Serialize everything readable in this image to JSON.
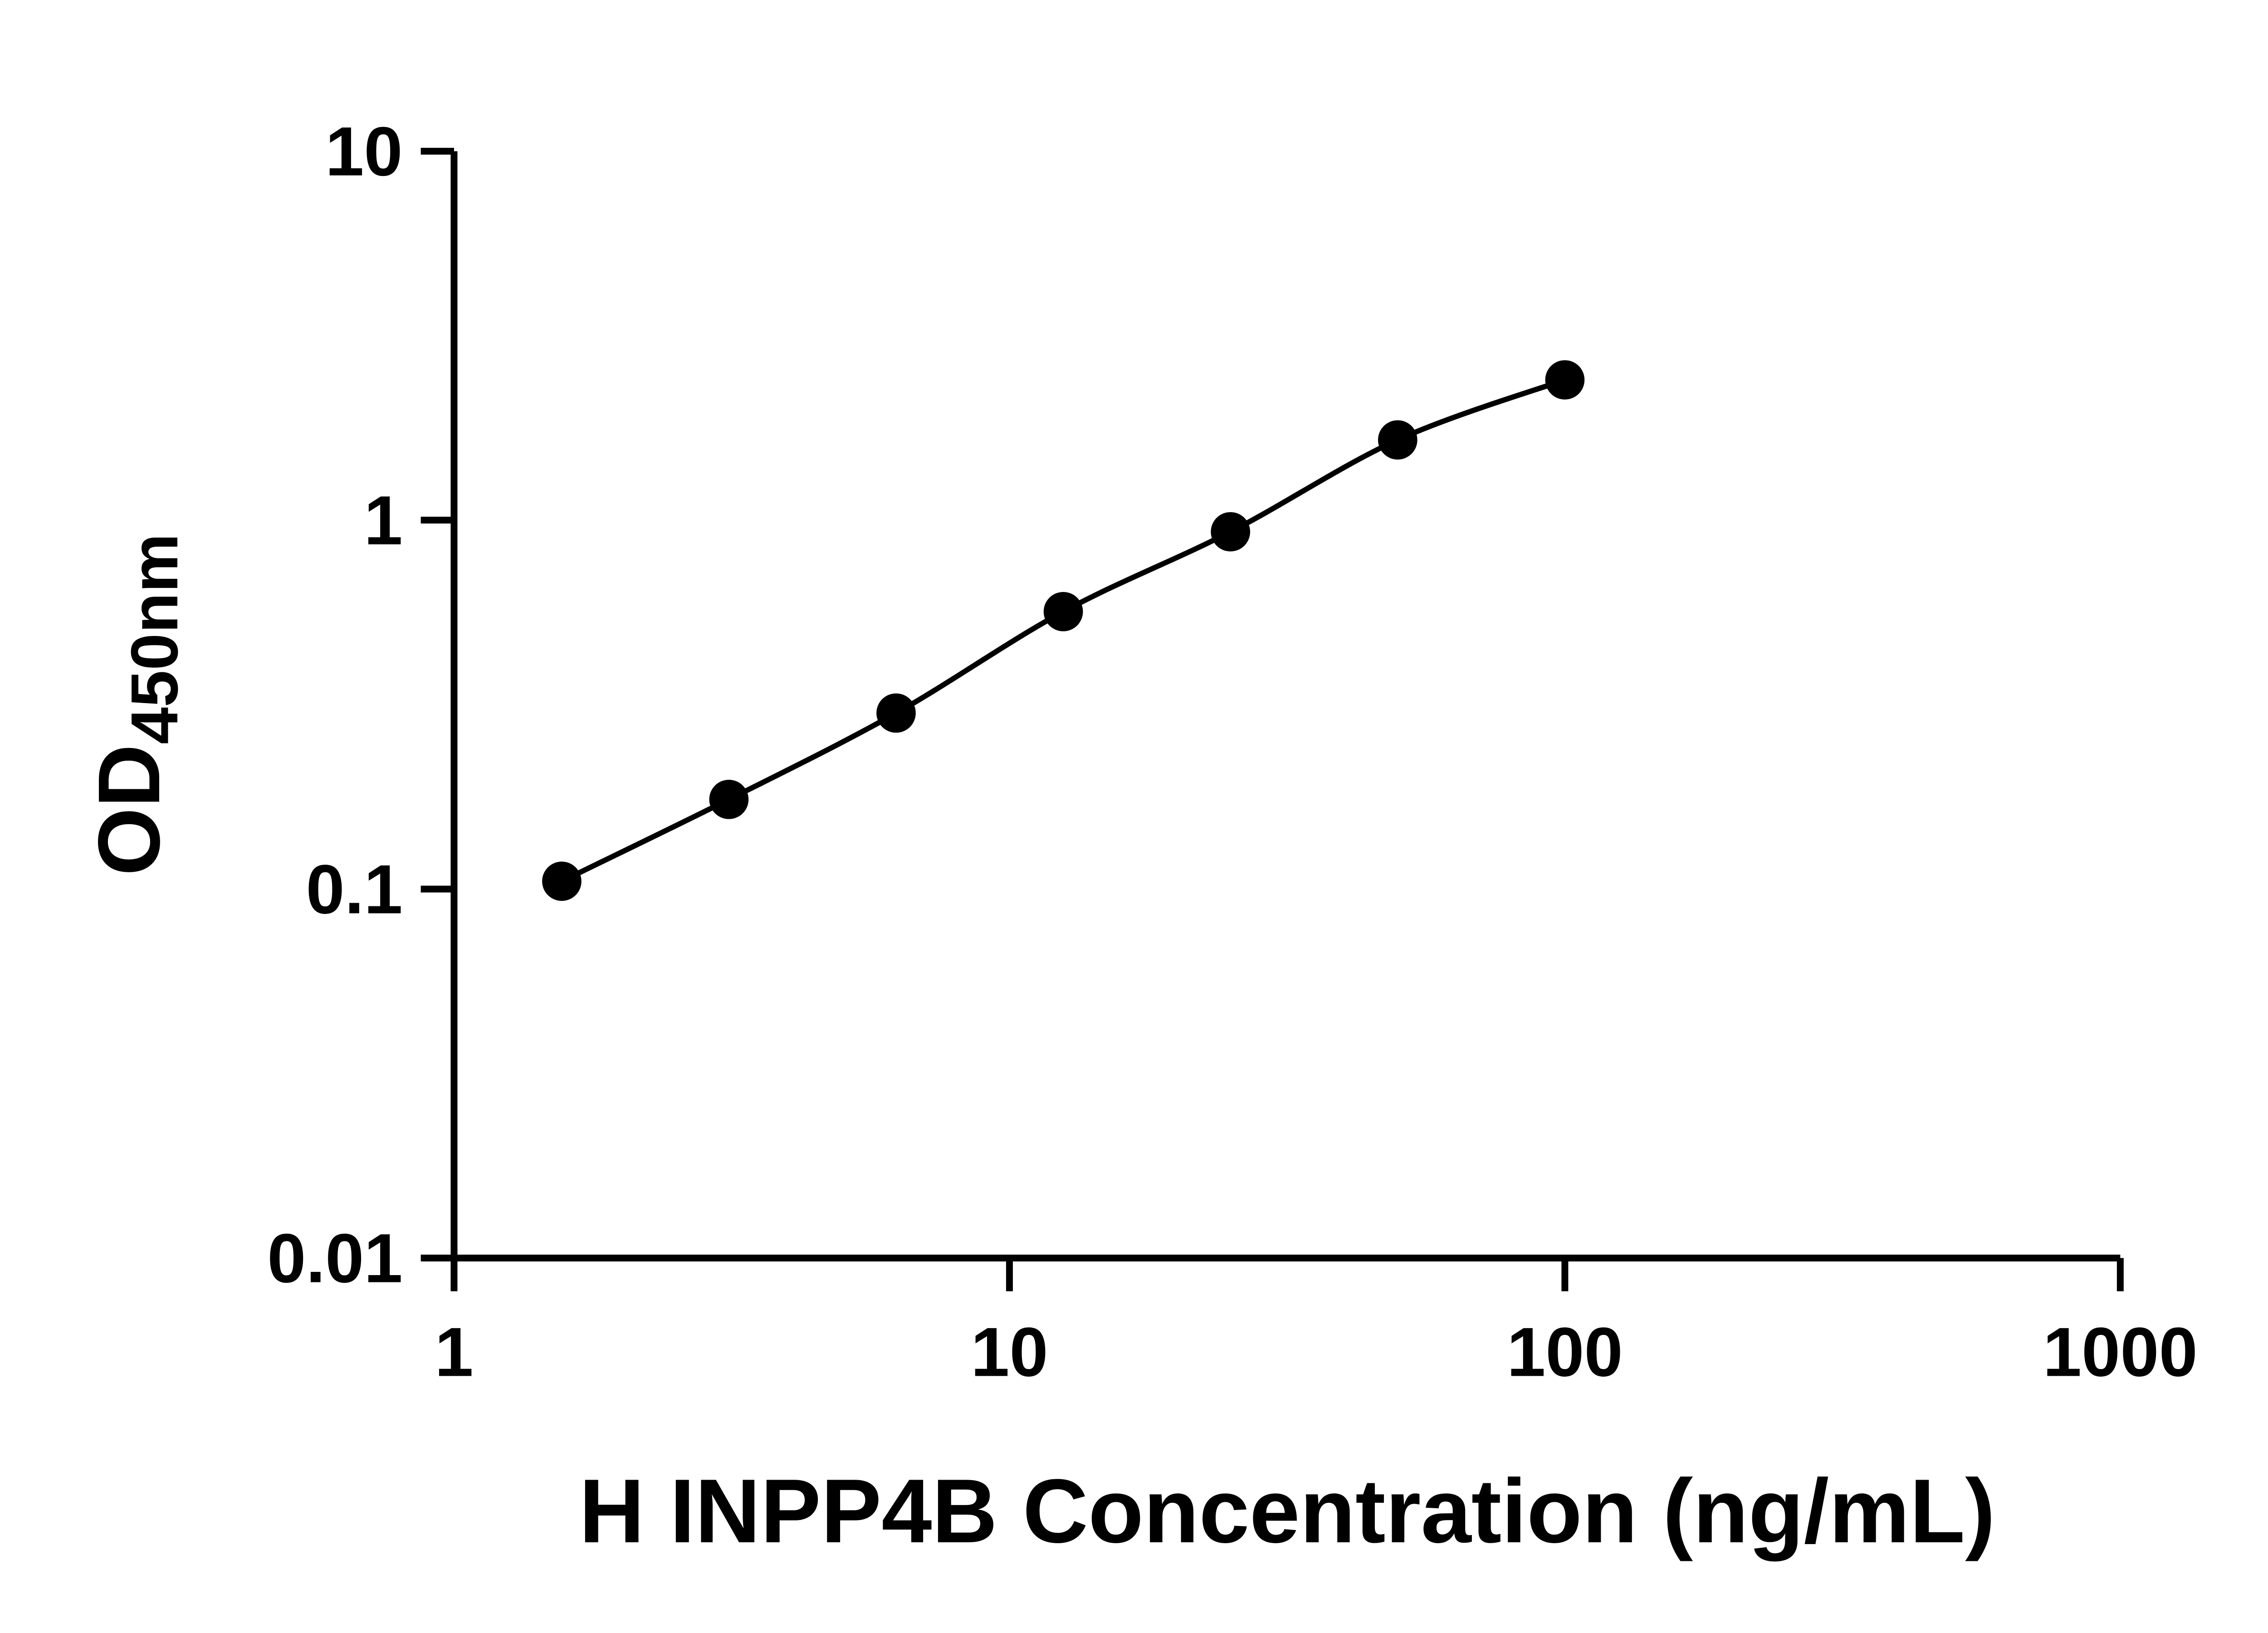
{
  "figure": {
    "background": "#ffffff",
    "y_axis_title_main": "OD",
    "y_axis_title_sub": "450nm"
  },
  "chart_data": {
    "type": "scatter",
    "subtype": "elisa-standard-curve",
    "x_scale": "log",
    "y_scale": "log",
    "x": [
      1.563,
      3.125,
      6.25,
      12.5,
      25,
      50,
      100
    ],
    "y": [
      0.105,
      0.175,
      0.3,
      0.565,
      0.93,
      1.65,
      2.4
    ],
    "xlabel": "H INPP4B Concentration (ng/mL)",
    "ylabel": "OD450nm",
    "xlim": [
      1,
      1000
    ],
    "ylim": [
      0.01,
      10
    ],
    "x_ticks": [
      1,
      10,
      100,
      1000
    ],
    "x_tick_labels": [
      "1",
      "10",
      "100",
      "1000"
    ],
    "y_ticks": [
      10,
      1,
      0.1,
      0.01
    ],
    "y_tick_labels": [
      "10",
      "1",
      "0.1",
      "0.01"
    ],
    "grid": false,
    "legend": false,
    "marker_color": "#000000",
    "marker_shape": "filled-circle",
    "line_color": "#000000",
    "axis_color": "#000000",
    "background": "#ffffff"
  }
}
